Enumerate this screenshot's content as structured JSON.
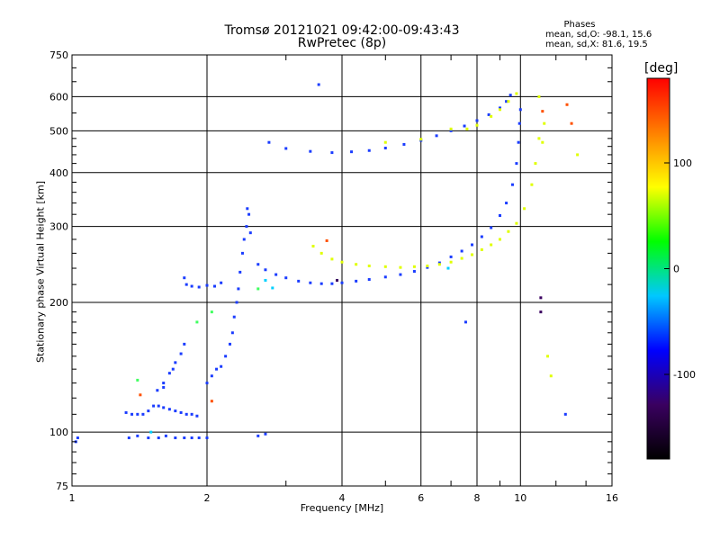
{
  "chart_data": {
    "type": "scatter",
    "title": "Tromsø 20121021 09:42:00-09:43:43",
    "subtitle": "RwPretec (8p)",
    "xlabel": "Frequency [MHz]",
    "ylabel": "Stationary phase Virtual Height [km]",
    "xscale": "log",
    "yscale": "log",
    "xlim": [
      1,
      16
    ],
    "ylim": [
      75,
      750
    ],
    "xticks": [
      1,
      2,
      4,
      6,
      8,
      10,
      16
    ],
    "xtick_labels": [
      "1",
      "2",
      "4",
      "6",
      "8",
      "10",
      "16"
    ],
    "yticks": [
      75,
      100,
      200,
      300,
      400,
      500,
      600,
      750
    ],
    "ytick_labels": [
      "75",
      "100",
      "200",
      "300",
      "400",
      "500",
      "600",
      "750"
    ],
    "grid": true,
    "phase_legend": {
      "title": "Phases",
      "line_o": "mean, sd,O: -98.1, 15.6",
      "line_x": "mean, sd,X:  81.6, 19.5"
    },
    "colorbar": {
      "label": "[deg]",
      "range": [
        -180,
        180
      ],
      "ticks": [
        100,
        0,
        -100
      ],
      "tick_labels": [
        "100",
        "0",
        "-100"
      ],
      "colors": [
        "#000000",
        "#3a0060",
        "#0000ff",
        "#00c8ff",
        "#00ff00",
        "#ffff00",
        "#ff8000",
        "#ff0000"
      ]
    },
    "series": [
      {
        "phase": -100,
        "color": "#1a3cff",
        "points": [
          [
            1.02,
            95
          ],
          [
            1.03,
            97
          ],
          [
            1.32,
            111
          ],
          [
            1.36,
            110
          ],
          [
            1.4,
            110
          ],
          [
            1.44,
            110
          ],
          [
            1.48,
            112
          ],
          [
            1.52,
            115
          ],
          [
            1.56,
            115
          ],
          [
            1.6,
            114
          ],
          [
            1.65,
            113
          ],
          [
            1.7,
            112
          ],
          [
            1.75,
            111
          ],
          [
            1.8,
            110
          ],
          [
            1.85,
            110
          ],
          [
            1.9,
            109
          ],
          [
            1.55,
            125
          ],
          [
            1.6,
            130
          ],
          [
            1.65,
            137
          ],
          [
            1.7,
            145
          ],
          [
            1.75,
            152
          ],
          [
            1.78,
            160
          ],
          [
            1.6,
            127
          ],
          [
            1.68,
            140
          ],
          [
            1.34,
            97
          ],
          [
            1.4,
            98
          ],
          [
            1.48,
            97
          ],
          [
            1.56,
            97
          ],
          [
            1.62,
            98
          ],
          [
            1.7,
            97
          ],
          [
            1.78,
            97
          ],
          [
            1.85,
            97
          ],
          [
            1.92,
            97
          ],
          [
            2.0,
            97
          ],
          [
            2.6,
            98
          ],
          [
            2.7,
            99
          ],
          [
            1.78,
            228
          ],
          [
            1.8,
            220
          ],
          [
            1.85,
            218
          ],
          [
            1.92,
            217
          ],
          [
            2.0,
            219
          ],
          [
            2.08,
            218
          ],
          [
            2.15,
            222
          ],
          [
            2.0,
            130
          ],
          [
            2.05,
            135
          ],
          [
            2.1,
            140
          ],
          [
            2.15,
            142
          ],
          [
            2.2,
            150
          ],
          [
            2.25,
            160
          ],
          [
            2.28,
            170
          ],
          [
            2.3,
            185
          ],
          [
            2.33,
            200
          ],
          [
            2.35,
            215
          ],
          [
            2.37,
            235
          ],
          [
            2.4,
            260
          ],
          [
            2.42,
            280
          ],
          [
            2.45,
            300
          ],
          [
            2.48,
            320
          ],
          [
            2.46,
            330
          ],
          [
            2.5,
            290
          ],
          [
            2.6,
            245
          ],
          [
            2.7,
            238
          ],
          [
            2.85,
            232
          ],
          [
            3.0,
            228
          ],
          [
            3.2,
            224
          ],
          [
            3.4,
            222
          ],
          [
            3.6,
            221
          ],
          [
            3.8,
            221
          ],
          [
            4.0,
            222
          ],
          [
            4.3,
            224
          ],
          [
            4.6,
            226
          ],
          [
            5.0,
            229
          ],
          [
            5.4,
            232
          ],
          [
            5.8,
            236
          ],
          [
            6.2,
            241
          ],
          [
            6.6,
            247
          ],
          [
            7.0,
            255
          ],
          [
            7.4,
            263
          ],
          [
            7.8,
            272
          ],
          [
            8.2,
            284
          ],
          [
            8.6,
            298
          ],
          [
            9.0,
            318
          ],
          [
            9.3,
            340
          ],
          [
            9.6,
            375
          ],
          [
            9.8,
            420
          ],
          [
            9.9,
            470
          ],
          [
            9.95,
            520
          ],
          [
            10.0,
            560
          ],
          [
            2.75,
            470
          ],
          [
            3.0,
            455
          ],
          [
            3.4,
            448
          ],
          [
            3.8,
            445
          ],
          [
            4.2,
            447
          ],
          [
            4.6,
            450
          ],
          [
            5.0,
            456
          ],
          [
            5.5,
            465
          ],
          [
            6.0,
            475
          ],
          [
            6.5,
            487
          ],
          [
            7.0,
            500
          ],
          [
            7.5,
            513
          ],
          [
            8.0,
            528
          ],
          [
            8.5,
            545
          ],
          [
            9.0,
            565
          ],
          [
            9.3,
            585
          ],
          [
            9.5,
            605
          ],
          [
            3.55,
            640
          ],
          [
            7.55,
            180
          ],
          [
            12.6,
            110
          ]
        ]
      },
      {
        "phase": 100,
        "color": "#e0ff00",
        "points": [
          [
            3.45,
            270
          ],
          [
            3.6,
            260
          ],
          [
            3.8,
            252
          ],
          [
            4.0,
            248
          ],
          [
            4.3,
            245
          ],
          [
            4.6,
            243
          ],
          [
            5.0,
            242
          ],
          [
            5.4,
            241
          ],
          [
            5.8,
            242
          ],
          [
            6.2,
            243
          ],
          [
            6.6,
            245
          ],
          [
            7.0,
            248
          ],
          [
            7.4,
            253
          ],
          [
            7.8,
            258
          ],
          [
            8.2,
            265
          ],
          [
            8.6,
            272
          ],
          [
            9.0,
            280
          ],
          [
            9.4,
            292
          ],
          [
            9.8,
            305
          ],
          [
            10.2,
            330
          ],
          [
            10.6,
            375
          ],
          [
            10.8,
            420
          ],
          [
            11.0,
            480
          ],
          [
            5.0,
            470
          ],
          [
            6.0,
            478
          ],
          [
            7.0,
            505
          ],
          [
            7.6,
            505
          ],
          [
            8.0,
            515
          ],
          [
            8.6,
            540
          ],
          [
            9.0,
            560
          ],
          [
            9.4,
            585
          ],
          [
            9.8,
            610
          ],
          [
            11.0,
            600
          ],
          [
            11.3,
            520
          ],
          [
            11.2,
            470
          ],
          [
            11.5,
            150
          ],
          [
            11.7,
            135
          ],
          [
            13.4,
            440
          ]
        ]
      },
      {
        "phase": 40,
        "color": "#40ff60",
        "points": [
          [
            1.4,
            132
          ],
          [
            1.9,
            180
          ],
          [
            2.05,
            190
          ],
          [
            2.6,
            215
          ]
        ]
      },
      {
        "phase": 160,
        "color": "#ff5000",
        "points": [
          [
            3.7,
            278
          ],
          [
            1.42,
            122
          ],
          [
            2.05,
            118
          ],
          [
            12.7,
            575
          ],
          [
            13.0,
            520
          ],
          [
            11.2,
            555
          ]
        ]
      },
      {
        "phase": -40,
        "color": "#00d0ff",
        "points": [
          [
            2.7,
            225
          ],
          [
            6.9,
            240
          ],
          [
            2.8,
            216
          ],
          [
            1.5,
            100
          ]
        ]
      },
      {
        "phase": -160,
        "color": "#3a0060",
        "points": [
          [
            11.1,
            205
          ],
          [
            11.1,
            190
          ],
          [
            3.9,
            225
          ]
        ]
      }
    ]
  }
}
